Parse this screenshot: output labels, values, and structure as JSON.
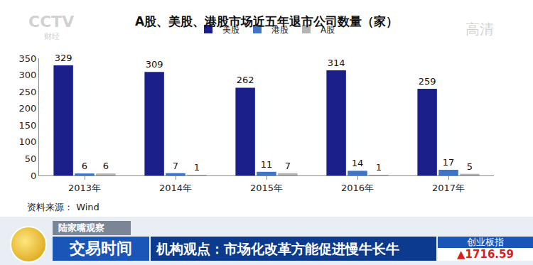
{
  "chart_data": {
    "type": "bar",
    "title": "A股、美股、港股市场近五年退市公司数量（家）",
    "categories": [
      "2013年",
      "2014年",
      "2015年",
      "2016年",
      "2017年"
    ],
    "series": [
      {
        "name": "美股",
        "color": "#1b1f8a",
        "values": [
          329,
          309,
          262,
          314,
          259
        ]
      },
      {
        "name": "港股",
        "color": "#3f74c6",
        "values": [
          6,
          7,
          11,
          14,
          17
        ]
      },
      {
        "name": "A股",
        "color": "#b4b4b4",
        "values": [
          6,
          1,
          7,
          1,
          5
        ]
      }
    ],
    "ylim": [
      0,
      350
    ],
    "yticks": [
      0,
      50,
      100,
      150,
      200,
      250,
      300,
      350
    ],
    "grid": false,
    "legend": "top",
    "data_labels": true,
    "annotations": [
      "资料来源： Wind"
    ]
  },
  "broadcast": {
    "watermark": "CCTV",
    "watermark_sub": "财经",
    "quality": "高清",
    "program": "陆家嘴观察",
    "show": "交易时间",
    "headline": "机构观点：市场化改革方能促进慢牛长牛",
    "index_name": "创业板指",
    "index_value": "▲1716.59"
  }
}
